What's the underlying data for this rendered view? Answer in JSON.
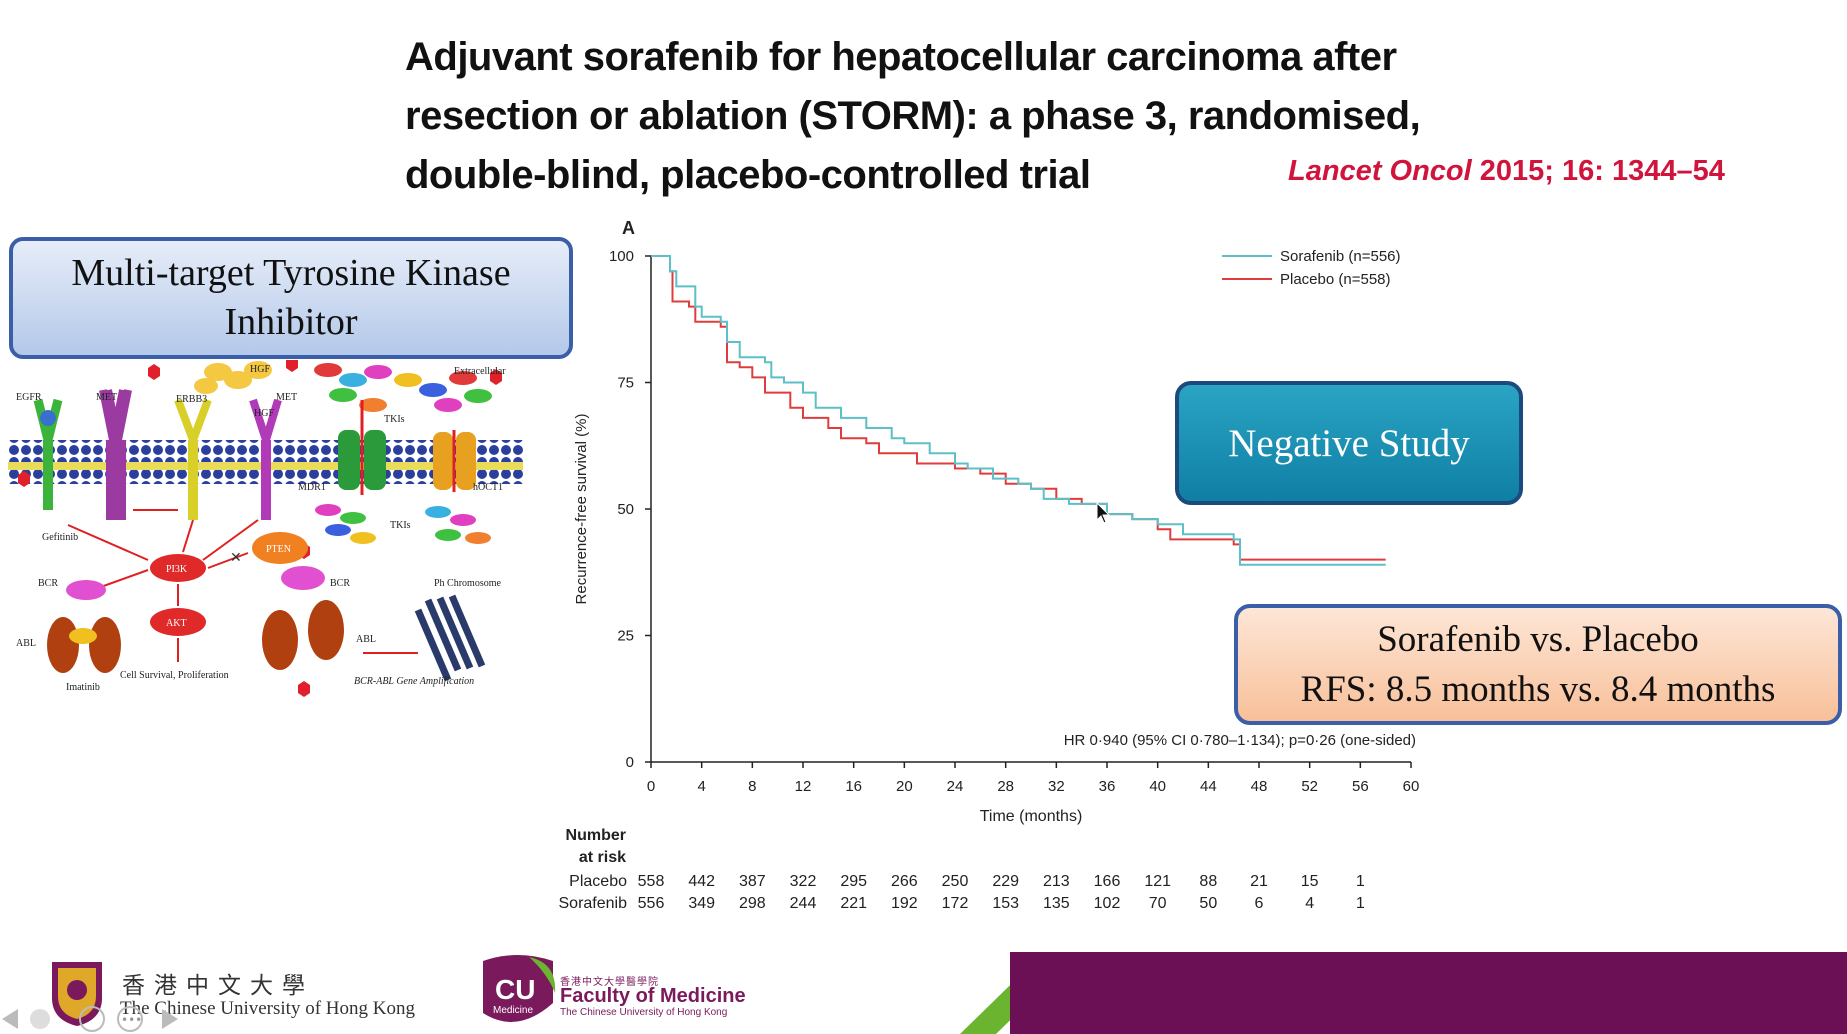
{
  "slide": {
    "title": "Adjuvant sorafenib for hepatocellular carcinoma after resection or ablation (STORM): a phase 3, randomised, double-blind, placebo-controlled trial",
    "citation_journal": "Lancet Oncol",
    "citation_rest": "2015; 16: 1344–54"
  },
  "mtk_box": {
    "line1": "Multi-target Tyrosine Kinase",
    "line2": "Inhibitor"
  },
  "negative_box": {
    "text": "Negative Study"
  },
  "rfs_box": {
    "line1": "Sorafenib vs. Placebo",
    "line2": "RFS: 8.5 months vs. 8.4 months"
  },
  "diagram": {
    "labels": {
      "egfr": "EGFR",
      "met1": "MET",
      "erbb3": "ERBB3",
      "hgf1": "HGF",
      "met2": "MET",
      "hgf2": "HGF",
      "extracellular": "Extracellular",
      "tkis1": "TKIs",
      "mdr1": "MDR1",
      "hoct1": "hOCT1",
      "gefitinib": "Gefitinib",
      "tkis2": "TKIs",
      "pten": "PTEN",
      "pi3k": "PI3K",
      "akt": "AKT",
      "bcr1": "BCR",
      "abl1": "ABL",
      "bcr2": "BCR",
      "abl2": "ABL",
      "imatinib": "Imatinib",
      "ph": "Ph Chromosome",
      "survival": "Cell Survival, Proliferation",
      "amplification": "BCR-ABL Gene Amplification"
    }
  },
  "chart_data": {
    "type": "line",
    "panel_label": "A",
    "title": "",
    "xlabel": "Time (months)",
    "ylabel": "Recurrence-free survival (%)",
    "xlim": [
      0,
      60
    ],
    "ylim": [
      0,
      100
    ],
    "xticks": [
      0,
      4,
      8,
      12,
      16,
      20,
      24,
      28,
      32,
      36,
      40,
      44,
      48,
      52,
      56,
      60
    ],
    "yticks": [
      0,
      25,
      50,
      75,
      100
    ],
    "legend_position": "top-right",
    "series": [
      {
        "name": "Sorafenib (n=556)",
        "color": "#5bc0c8",
        "points": [
          [
            0,
            100
          ],
          [
            1.5,
            100
          ],
          [
            1.5,
            97
          ],
          [
            2,
            97
          ],
          [
            2,
            94
          ],
          [
            3.5,
            94
          ],
          [
            3.5,
            90
          ],
          [
            4,
            90
          ],
          [
            4,
            88
          ],
          [
            5.5,
            88
          ],
          [
            5.5,
            87
          ],
          [
            6,
            87
          ],
          [
            6,
            83
          ],
          [
            7,
            83
          ],
          [
            7,
            80
          ],
          [
            9,
            80
          ],
          [
            9,
            79
          ],
          [
            9.5,
            79
          ],
          [
            9.5,
            76
          ],
          [
            10.5,
            76
          ],
          [
            10.5,
            75
          ],
          [
            12,
            75
          ],
          [
            12,
            73
          ],
          [
            13,
            73
          ],
          [
            13,
            70
          ],
          [
            15,
            70
          ],
          [
            15,
            68
          ],
          [
            17,
            68
          ],
          [
            17,
            66
          ],
          [
            19,
            66
          ],
          [
            19,
            64
          ],
          [
            20,
            64
          ],
          [
            20,
            63
          ],
          [
            22,
            63
          ],
          [
            22,
            61
          ],
          [
            24,
            61
          ],
          [
            24,
            59
          ],
          [
            25,
            59
          ],
          [
            25,
            58
          ],
          [
            27,
            58
          ],
          [
            27,
            56
          ],
          [
            29,
            56
          ],
          [
            29,
            55
          ],
          [
            30,
            55
          ],
          [
            30,
            54
          ],
          [
            31,
            54
          ],
          [
            31,
            52
          ],
          [
            33,
            52
          ],
          [
            33,
            51
          ],
          [
            36,
            51
          ],
          [
            36,
            49
          ],
          [
            38,
            49
          ],
          [
            38,
            48
          ],
          [
            40,
            48
          ],
          [
            40,
            47
          ],
          [
            42,
            47
          ],
          [
            42,
            45
          ],
          [
            46,
            45
          ],
          [
            46,
            44
          ],
          [
            46.5,
            44
          ],
          [
            46.5,
            39
          ],
          [
            58,
            39
          ]
        ]
      },
      {
        "name": "Placebo (n=558)",
        "color": "#e03c3c",
        "points": [
          [
            0,
            100
          ],
          [
            1.5,
            100
          ],
          [
            1.5,
            97
          ],
          [
            1.7,
            97
          ],
          [
            1.7,
            91
          ],
          [
            3,
            91
          ],
          [
            3,
            90
          ],
          [
            3.5,
            90
          ],
          [
            3.5,
            87
          ],
          [
            5.5,
            87
          ],
          [
            5.5,
            86
          ],
          [
            6,
            86
          ],
          [
            6,
            79
          ],
          [
            7,
            79
          ],
          [
            7,
            78
          ],
          [
            8,
            78
          ],
          [
            8,
            76
          ],
          [
            9,
            76
          ],
          [
            9,
            73
          ],
          [
            11,
            73
          ],
          [
            11,
            70
          ],
          [
            12,
            70
          ],
          [
            12,
            68
          ],
          [
            14,
            68
          ],
          [
            14,
            66
          ],
          [
            15,
            66
          ],
          [
            15,
            64
          ],
          [
            17,
            64
          ],
          [
            17,
            63
          ],
          [
            18,
            63
          ],
          [
            18,
            61
          ],
          [
            21,
            61
          ],
          [
            21,
            59
          ],
          [
            24,
            59
          ],
          [
            24,
            58
          ],
          [
            26,
            58
          ],
          [
            26,
            57
          ],
          [
            28,
            57
          ],
          [
            28,
            55
          ],
          [
            30,
            55
          ],
          [
            30,
            54
          ],
          [
            32,
            54
          ],
          [
            32,
            52
          ],
          [
            34,
            52
          ],
          [
            34,
            51
          ],
          [
            36,
            51
          ],
          [
            36,
            49
          ],
          [
            38,
            49
          ],
          [
            38,
            48
          ],
          [
            40,
            48
          ],
          [
            40,
            46
          ],
          [
            41,
            46
          ],
          [
            41,
            44
          ],
          [
            46,
            44
          ],
          [
            46,
            43
          ],
          [
            46.5,
            43
          ],
          [
            46.5,
            40
          ],
          [
            58,
            40
          ]
        ]
      }
    ],
    "annotation": "HR 0·940 (95% CI 0·780–1·134); p=0·26 (one-sided)",
    "risk_table": {
      "title_line1": "Number",
      "title_line2": "at risk",
      "times": [
        0,
        4,
        8,
        12,
        16,
        20,
        24,
        28,
        32,
        36,
        40,
        44,
        48,
        52,
        56
      ],
      "rows": [
        {
          "label": "Placebo",
          "values": [
            558,
            442,
            387,
            322,
            295,
            266,
            250,
            229,
            213,
            166,
            121,
            88,
            21,
            15,
            1
          ]
        },
        {
          "label": "Sorafenib",
          "values": [
            556,
            349,
            298,
            244,
            221,
            192,
            172,
            153,
            135,
            102,
            70,
            50,
            6,
            4,
            1
          ]
        }
      ]
    }
  },
  "footer": {
    "cuhk_cn": "香港中文大學",
    "cuhk_en": "The Chinese University of Hong Kong",
    "cu_logo_line1": "CU",
    "cu_logo_line2": "Medicine",
    "fom_cn": "香港中文大學醫學院",
    "fom_en": "Faculty of Medicine",
    "fom_sub": "The Chinese University of Hong Kong"
  }
}
